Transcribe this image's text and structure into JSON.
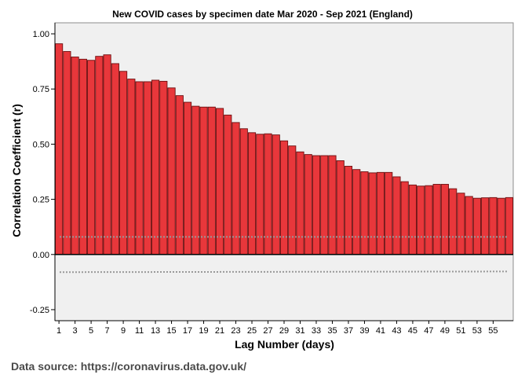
{
  "chart_data": {
    "type": "bar",
    "title": "New COVID cases by specimen date Mar 2020 - Sep 2021 (England)",
    "xlabel": "Lag Number (days)",
    "ylabel": "Correlation Coefficient (r)",
    "ylim": [
      -0.25,
      1.0
    ],
    "yticks": [
      "1.00",
      "0.75",
      "0.50",
      "0.25",
      "0.00",
      "-0.25"
    ],
    "ytick_values": [
      1.0,
      0.75,
      0.5,
      0.25,
      0.0,
      -0.25
    ],
    "xtick_labels": [
      1,
      3,
      5,
      7,
      9,
      11,
      13,
      15,
      17,
      19,
      21,
      23,
      25,
      27,
      29,
      31,
      33,
      35,
      37,
      39,
      41,
      43,
      45,
      47,
      49,
      51,
      53,
      55
    ],
    "categories": [
      1,
      2,
      3,
      4,
      5,
      6,
      7,
      8,
      9,
      10,
      11,
      12,
      13,
      14,
      15,
      16,
      17,
      18,
      19,
      20,
      21,
      22,
      23,
      24,
      25,
      26,
      27,
      28,
      29,
      30,
      31,
      32,
      33,
      34,
      35,
      36,
      37,
      38,
      39,
      40,
      41,
      42,
      43,
      44,
      45,
      46,
      47,
      48,
      49,
      50,
      51,
      52,
      53,
      54,
      55,
      56,
      57
    ],
    "values": [
      0.955,
      0.92,
      0.895,
      0.885,
      0.88,
      0.898,
      0.905,
      0.865,
      0.83,
      0.795,
      0.783,
      0.783,
      0.79,
      0.785,
      0.755,
      0.72,
      0.69,
      0.672,
      0.668,
      0.668,
      0.662,
      0.632,
      0.598,
      0.57,
      0.552,
      0.545,
      0.547,
      0.542,
      0.515,
      0.492,
      0.465,
      0.453,
      0.448,
      0.448,
      0.448,
      0.425,
      0.4,
      0.385,
      0.375,
      0.37,
      0.372,
      0.372,
      0.352,
      0.33,
      0.315,
      0.31,
      0.312,
      0.318,
      0.318,
      0.298,
      0.278,
      0.263,
      0.255,
      0.257,
      0.258,
      0.255,
      0.258
    ],
    "confidence_upper": {
      "start": 0.08,
      "end": 0.08
    },
    "confidence_lower": {
      "start": -0.08,
      "end": -0.077
    },
    "grid": false,
    "colors": {
      "bar_fill": "#e8373b",
      "bar_stroke": "#6e0f10",
      "plot_bg": "#f0f0f0",
      "confidence_line": "#999999"
    }
  },
  "source_note": "Data source: https://coronavirus.data.gov.uk/"
}
